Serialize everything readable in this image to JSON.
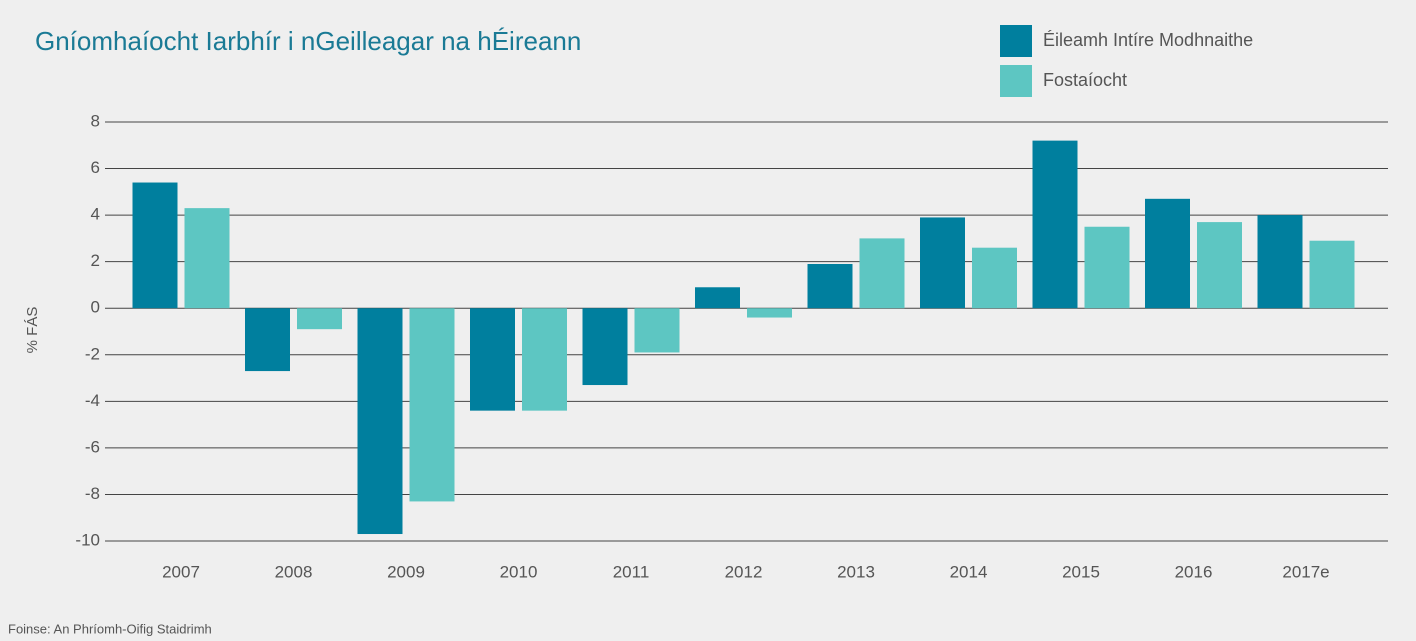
{
  "chart_data": {
    "type": "bar",
    "title": "Gníomhaíocht Iarbhír i nGeilleagar na hÉireann",
    "y_label": "% FÁS",
    "source": "Foinse: An Phríomh-Oifig Staidrimh",
    "categories": [
      "2007",
      "2008",
      "2009",
      "2010",
      "2011",
      "2012",
      "2013",
      "2014",
      "2015",
      "2016",
      "2017e"
    ],
    "series": [
      {
        "name": "Éileamh Intíre Modhnaithe",
        "color": "#007f9e",
        "values": [
          5.4,
          -2.7,
          -9.7,
          -4.4,
          -3.3,
          0.9,
          1.9,
          3.9,
          7.2,
          4.7,
          4.0
        ]
      },
      {
        "name": "Fostaíocht",
        "color": "#5dc6c2",
        "values": [
          4.3,
          -0.9,
          -8.3,
          -4.4,
          -1.9,
          -0.4,
          3.0,
          2.6,
          3.5,
          3.7,
          2.9
        ]
      }
    ],
    "ylim": [
      -10,
      8
    ],
    "yticks": [
      -10,
      -8,
      -6,
      -4,
      -2,
      0,
      2,
      4,
      6,
      8
    ],
    "grid": true,
    "legend": "top-right"
  }
}
